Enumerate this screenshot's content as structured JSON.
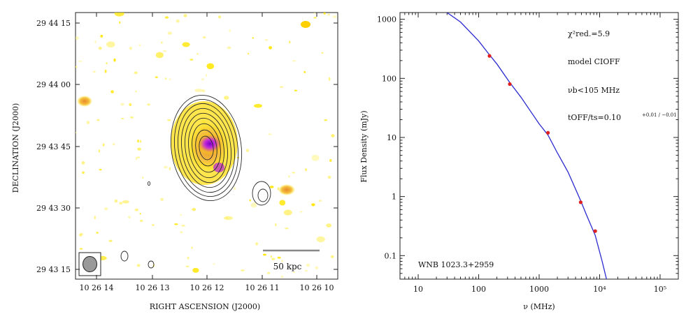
{
  "chart_data": [
    {
      "type": "heatmap",
      "title": "",
      "xlabel": "RIGHT ASCENSION  (J2000)",
      "ylabel": "DECLINATION  (J2000)",
      "x_tick_labels": [
        "10 26 14",
        "10 26 13",
        "10 26 12",
        "10 26 11",
        "10 26 10"
      ],
      "y_tick_labels": [
        "29 44 15",
        "29 44 00",
        "29 43 45",
        "29 43 30",
        "29 43 15"
      ],
      "scale_bar_label": "50 kpc",
      "overlay": "radio contours on optical colour image",
      "colors": {
        "low": "#ffe600",
        "mid": "#f0a020",
        "high": "#b400c8"
      }
    },
    {
      "type": "line",
      "title": "",
      "xlabel": "ν (MHz)",
      "ylabel": "Flux Density (mJy)",
      "xscale": "log",
      "yscale": "log",
      "xlim": [
        5,
        200000
      ],
      "ylim": [
        0.04,
        1300
      ],
      "x_tick_labels": [
        "10",
        "100",
        "1000",
        "10⁴",
        "10⁵"
      ],
      "y_tick_labels": [
        "0.1",
        "1",
        "10",
        "100",
        "1000"
      ],
      "points": [
        {
          "x": 151,
          "y": 240
        },
        {
          "x": 327,
          "y": 80
        },
        {
          "x": 1400,
          "y": 12
        },
        {
          "x": 4860,
          "y": 0.8
        },
        {
          "x": 8460,
          "y": 0.26
        }
      ],
      "fit_curve": [
        {
          "x": 30,
          "y": 1300
        },
        {
          "x": 50,
          "y": 900
        },
        {
          "x": 100,
          "y": 430
        },
        {
          "x": 151,
          "y": 250
        },
        {
          "x": 200,
          "y": 175
        },
        {
          "x": 327,
          "y": 85
        },
        {
          "x": 500,
          "y": 48
        },
        {
          "x": 1000,
          "y": 17
        },
        {
          "x": 1400,
          "y": 11
        },
        {
          "x": 2000,
          "y": 5.5
        },
        {
          "x": 3000,
          "y": 2.6
        },
        {
          "x": 4860,
          "y": 0.85
        },
        {
          "x": 6000,
          "y": 0.5
        },
        {
          "x": 8460,
          "y": 0.22
        },
        {
          "x": 11000,
          "y": 0.08
        },
        {
          "x": 13000,
          "y": 0.04
        }
      ],
      "annotations": {
        "chi2": "χ²red.=5.9",
        "model": "model CIOFF",
        "nu_b": "νb<105  MHz",
        "t_ratio": "tOFF/ts=0.10",
        "t_ratio_err": "+0.01 / −0.01",
        "source": "WNB 1023.3+2959"
      },
      "colors": {
        "fit": "#2a2ad0",
        "points": "#e02020"
      }
    }
  ]
}
